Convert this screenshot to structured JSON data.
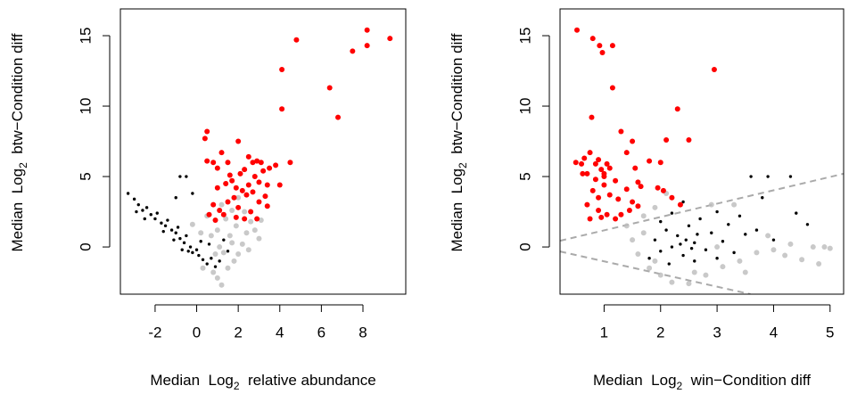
{
  "chart_data": [
    {
      "type": "scatter",
      "xlabel": {
        "prefix": "Median  Log",
        "sub": "2",
        "suffix": "  relative abundance"
      },
      "ylabel": {
        "prefix": "Median  Log",
        "sub": "2",
        "suffix": "  btw−Condition diff"
      },
      "xlim": [
        -3.67,
        10.06
      ],
      "ylim": [
        -3.35,
        16.9
      ],
      "xticks": [
        -2,
        0,
        2,
        4,
        6,
        8
      ],
      "yticks": [
        0,
        5,
        10,
        15
      ],
      "series": [
        {
          "color": "#bbbbbb",
          "x": [
            0.8,
            1.0,
            1.2,
            1.5,
            1.8,
            2.0,
            2.2,
            2.4,
            2.6,
            2.8,
            3.0,
            1.6,
            1.9,
            1.4,
            1.0,
            0.7,
            0.5,
            1.2,
            2.0,
            1.7,
            0.2,
            -0.2,
            0.3,
            2.5,
            3.1,
            0.9,
            1.1,
            1.3,
            1.7,
            2.3
          ],
          "values": [
            -1.8,
            -2.2,
            -2.7,
            -1.5,
            -1.0,
            -0.5,
            0.2,
            1.0,
            1.8,
            1.2,
            0.6,
            0.8,
            1.5,
            2.0,
            1.2,
            0.8,
            2.2,
            3.0,
            3.5,
            2.6,
            1.0,
            1.6,
            -1.5,
            -0.2,
            1.9,
            -0.5,
            0.0,
            -0.4,
            0.3,
            2.5
          ]
        },
        {
          "color": "#000000",
          "x": [
            -3.3,
            -3.0,
            -2.8,
            -2.6,
            -2.4,
            -2.2,
            -2.0,
            -1.9,
            -1.7,
            -1.5,
            -1.4,
            -1.2,
            -1.0,
            -0.9,
            -0.8,
            -0.6,
            -0.5,
            -0.3,
            -0.2,
            0.0,
            0.1,
            0.3,
            0.5,
            0.7,
            0.9,
            1.1,
            -1.6,
            -2.5,
            -1.1,
            -0.4,
            -0.8,
            -0.5,
            -0.2,
            -1.0,
            0.2,
            0.6,
            1.3,
            1.5,
            -2.9,
            -0.7
          ],
          "values": [
            3.8,
            3.4,
            3.0,
            2.6,
            2.8,
            2.3,
            2.0,
            2.4,
            1.7,
            1.5,
            1.9,
            1.2,
            1.0,
            1.4,
            0.6,
            0.3,
            0.8,
            0.0,
            -0.4,
            -0.2,
            -0.6,
            -0.9,
            -1.2,
            -0.8,
            -1.4,
            -1.0,
            1.1,
            2.0,
            0.5,
            -0.3,
            5.0,
            5.0,
            3.8,
            3.5,
            0.4,
            0.2,
            0.5,
            -0.3,
            2.5,
            -0.2
          ]
        },
        {
          "color": "#ff0000",
          "x": [
            0.4,
            0.5,
            0.5,
            0.8,
            1.0,
            1.2,
            1.5,
            1.6,
            1.9,
            2.0,
            2.3,
            2.5,
            2.7,
            2.9,
            3.1,
            3.2,
            3.4,
            3.0,
            2.5,
            2.2,
            1.8,
            1.5,
            1.1,
            0.6,
            0.8,
            1.3,
            2.0,
            2.6,
            2.9,
            2.4,
            2.7,
            3.0,
            3.3,
            1.7,
            1.4,
            1.0,
            2.1,
            2.8,
            3.5,
            3.8,
            4.0,
            4.5,
            4.1,
            4.1,
            4.8,
            6.4,
            6.8,
            7.5,
            8.2,
            8.2,
            9.3,
            2.3,
            1.9,
            3.4,
            0.9
          ],
          "values": [
            7.7,
            8.2,
            6.1,
            6.0,
            5.6,
            6.7,
            6.0,
            5.1,
            4.2,
            7.5,
            5.5,
            6.4,
            6.0,
            6.1,
            6.0,
            5.4,
            4.4,
            4.6,
            4.4,
            4.0,
            3.5,
            3.2,
            2.6,
            2.3,
            3.0,
            2.3,
            2.8,
            2.5,
            2.0,
            3.7,
            3.9,
            3.2,
            3.6,
            4.7,
            4.5,
            4.2,
            5.2,
            5.0,
            5.6,
            5.8,
            4.4,
            6.0,
            12.6,
            9.8,
            14.7,
            11.3,
            9.2,
            13.9,
            15.4,
            14.3,
            14.8,
            2.0,
            2.1,
            2.9,
            1.9
          ]
        }
      ]
    },
    {
      "type": "scatter",
      "xlabel": {
        "prefix": "Median  Log",
        "sub": "2",
        "suffix": "  win−Condition diff"
      },
      "ylabel": {
        "prefix": "Median  Log",
        "sub": "2",
        "suffix": "  btw−Condition diff"
      },
      "xlim": [
        0.22,
        5.24
      ],
      "ylim": [
        -3.35,
        16.9
      ],
      "xticks": [
        1,
        2,
        3,
        4,
        5
      ],
      "yticks": [
        0,
        5,
        10,
        15
      ],
      "reference_lines": [
        {
          "color": "#aaaaaa",
          "x": [
            0.22,
            5.24
          ],
          "values": [
            0.44,
            5.2
          ]
        },
        {
          "color": "#aaaaaa",
          "x": [
            0.22,
            3.59
          ],
          "values": [
            -0.32,
            -3.35
          ]
        }
      ],
      "series": [
        {
          "color": "#bbbbbb",
          "x": [
            1.5,
            1.6,
            1.7,
            1.8,
            2.0,
            2.2,
            2.5,
            2.8,
            3.1,
            3.4,
            3.7,
            4.0,
            4.3,
            4.7,
            4.9,
            5.0,
            4.8,
            4.5,
            3.9,
            3.3,
            2.1,
            1.9,
            1.7,
            1.4,
            2.9,
            3.5,
            4.2,
            1.9,
            2.6,
            3.0
          ],
          "values": [
            0.5,
            -0.5,
            1.0,
            -1.5,
            -2.0,
            -2.5,
            -2.6,
            -2.0,
            -1.4,
            -1.0,
            -0.4,
            -0.2,
            0.2,
            0.0,
            0.0,
            -0.1,
            -1.2,
            -0.9,
            0.8,
            3.0,
            3.8,
            2.8,
            2.2,
            1.5,
            3.0,
            -1.8,
            -0.6,
            -1.0,
            -1.8,
            0.0
          ]
        },
        {
          "color": "#000000",
          "x": [
            1.9,
            2.0,
            2.1,
            2.2,
            2.3,
            2.4,
            2.5,
            2.6,
            2.7,
            2.8,
            2.9,
            3.0,
            3.1,
            3.2,
            3.3,
            3.4,
            3.5,
            3.6,
            3.8,
            3.9,
            4.3,
            4.4,
            4.6,
            2.0,
            2.2,
            2.4,
            2.6,
            1.8,
            3.0,
            2.35,
            2.45,
            2.55,
            2.65,
            3.7,
            4.0,
            2.15
          ],
          "values": [
            0.5,
            -0.3,
            1.2,
            0.0,
            0.8,
            -0.6,
            1.5,
            0.3,
            2.0,
            -0.2,
            1.0,
            2.5,
            0.4,
            1.6,
            -0.4,
            2.2,
            0.9,
            5.0,
            3.5,
            5.0,
            5.0,
            2.4,
            1.6,
            1.8,
            2.4,
            3.2,
            -1.0,
            -0.8,
            -0.8,
            0.2,
            0.5,
            -0.1,
            0.9,
            1.2,
            0.5,
            -1.2
          ]
        },
        {
          "color": "#ff0000",
          "x": [
            0.52,
            0.8,
            0.92,
            0.97,
            1.15,
            1.15,
            0.78,
            2.3,
            2.95,
            0.5,
            0.6,
            0.62,
            0.65,
            0.75,
            0.85,
            0.9,
            0.95,
            1.0,
            1.05,
            1.1,
            1.2,
            1.3,
            1.4,
            1.5,
            1.55,
            1.65,
            1.6,
            1.3,
            1.2,
            1.05,
            0.9,
            0.75,
            0.7,
            0.8,
            0.9,
            1.0,
            1.1,
            1.25,
            1.4,
            1.5,
            1.6,
            1.8,
            2.0,
            2.1,
            2.5,
            1.95,
            2.05,
            2.2,
            2.35,
            0.85,
            1.0,
            0.7,
            0.95,
            1.45
          ],
          "values": [
            15.4,
            14.8,
            14.3,
            13.8,
            14.3,
            11.3,
            9.2,
            9.8,
            12.6,
            6.0,
            5.9,
            5.2,
            6.3,
            6.7,
            5.9,
            6.2,
            5.5,
            5.2,
            5.9,
            5.6,
            4.7,
            8.2,
            6.7,
            7.5,
            5.6,
            4.3,
            2.9,
            2.3,
            2.0,
            2.3,
            2.6,
            2.0,
            3.0,
            4.0,
            3.5,
            4.4,
            3.7,
            3.4,
            4.1,
            3.2,
            4.6,
            6.1,
            6.0,
            7.6,
            7.6,
            4.2,
            4.0,
            3.5,
            3.0,
            4.8,
            5.0,
            5.2,
            2.1,
            2.6
          ]
        }
      ]
    }
  ]
}
